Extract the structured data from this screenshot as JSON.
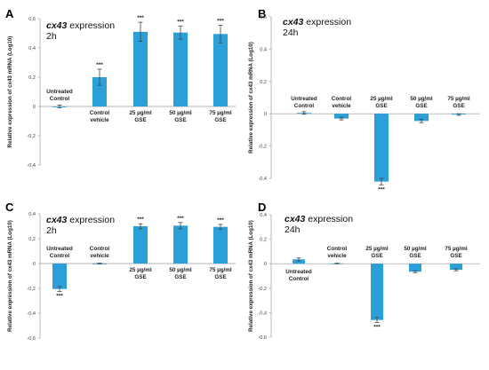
{
  "colors": {
    "bar": "#2b9fd8",
    "axis": "#9a9a9a",
    "text": "#222222",
    "error": "#444444"
  },
  "chart_data": [
    {
      "panel": "A",
      "type": "bar",
      "gene": "cx43",
      "title_suffix": "expression",
      "timepoint": "2h",
      "ylabel": "Relative expression of cx43 mRNA (Log10)",
      "ylim": [
        -0.4,
        0.6
      ],
      "yticks": [
        -0.4,
        -0.2,
        0,
        0.2,
        0.4,
        0.6
      ],
      "ytick_labels": [
        "-0,4",
        "-0,2",
        "0",
        "0,2",
        "0,4",
        "0,6"
      ],
      "labels_above": true,
      "categories": [
        [
          "Untreated",
          "Control"
        ],
        [
          "Control",
          "vehicle"
        ],
        [
          "25 µg/ml",
          "GSE"
        ],
        [
          "50 µg/ml",
          "GSE"
        ],
        [
          "75 µg/ml",
          "GSE"
        ]
      ],
      "values": [
        0.0,
        0.2,
        0.51,
        0.505,
        0.495
      ],
      "errors": [
        0.01,
        0.055,
        0.065,
        0.045,
        0.06
      ],
      "significance": [
        "",
        "***",
        "***",
        "***",
        "***"
      ]
    },
    {
      "panel": "B",
      "type": "bar",
      "gene": "cx43",
      "title_suffix": "expression",
      "timepoint": "24h",
      "ylabel": "Relative expression of cx43 mRNA (Log10)",
      "ylim": [
        -0.5,
        0.6
      ],
      "yticks": [
        -0.4,
        -0.2,
        0,
        0.2,
        0.4,
        0.6
      ],
      "ytick_labels": [
        "-0,4",
        "-0,2",
        "0",
        "0,2",
        "0,4",
        "0,6"
      ],
      "labels_above": true,
      "categories": [
        [
          "Untreated",
          "Control"
        ],
        [
          "Control",
          "vehicle"
        ],
        [
          "25 µg/ml",
          "GSE"
        ],
        [
          "50 µg/ml",
          "GSE"
        ],
        [
          "75 µg/ml",
          "GSE"
        ]
      ],
      "values": [
        0.005,
        -0.03,
        -0.42,
        -0.045,
        -0.005
      ],
      "errors": [
        0.008,
        0.008,
        0.02,
        0.01,
        0.005
      ],
      "significance": [
        "",
        "",
        "***",
        "",
        ""
      ]
    },
    {
      "panel": "C",
      "type": "bar",
      "gene": "cx43",
      "title_suffix": "expression",
      "timepoint": "2h",
      "ylabel": "Relative expression of cx43 mRNA (Log10)",
      "ylim": [
        -0.6,
        0.4
      ],
      "yticks": [
        -0.6,
        -0.4,
        -0.2,
        0,
        0.2,
        0.4
      ],
      "ytick_labels": [
        "-0,6",
        "-0,4",
        "-0,2",
        "0",
        "0,2",
        "0,4"
      ],
      "labels_above": true,
      "categories": [
        [
          "Untreated",
          "Control"
        ],
        [
          "Control",
          "vehicle"
        ],
        [
          "25 µg/ml",
          "GSE"
        ],
        [
          "50 µg/ml",
          "GSE"
        ],
        [
          "75 µg/ml",
          "GSE"
        ]
      ],
      "values": [
        -0.205,
        0.0,
        0.3,
        0.305,
        0.295
      ],
      "errors": [
        0.02,
        0.003,
        0.02,
        0.025,
        0.02
      ],
      "significance": [
        "***",
        "",
        "***",
        "***",
        "***"
      ]
    },
    {
      "panel": "D",
      "type": "bar",
      "gene": "cx43",
      "title_suffix": "expression",
      "timepoint": "24h",
      "ylabel": "Relative expression of cx43 mRNA (Log10)",
      "ylim": [
        -0.6,
        0.4
      ],
      "yticks": [
        -0.6,
        -0.4,
        -0.2,
        0,
        0.2,
        0.4
      ],
      "ytick_labels": [
        "-0,6",
        "-0,4",
        "-0,2",
        "0",
        "0,2",
        "0,4"
      ],
      "labels_above": false,
      "categories": [
        [
          "Untreated",
          "Control"
        ],
        [
          "Control",
          "vehicle"
        ],
        [
          "25 µg/ml",
          "GSE"
        ],
        [
          "50 µg/ml",
          "GSE"
        ],
        [
          "75 µg/ml",
          "GSE"
        ]
      ],
      "values": [
        0.035,
        0.002,
        -0.46,
        -0.065,
        -0.05
      ],
      "errors": [
        0.012,
        0.002,
        0.02,
        0.008,
        0.008
      ],
      "significance": [
        "",
        "",
        "***",
        "",
        ""
      ]
    }
  ]
}
